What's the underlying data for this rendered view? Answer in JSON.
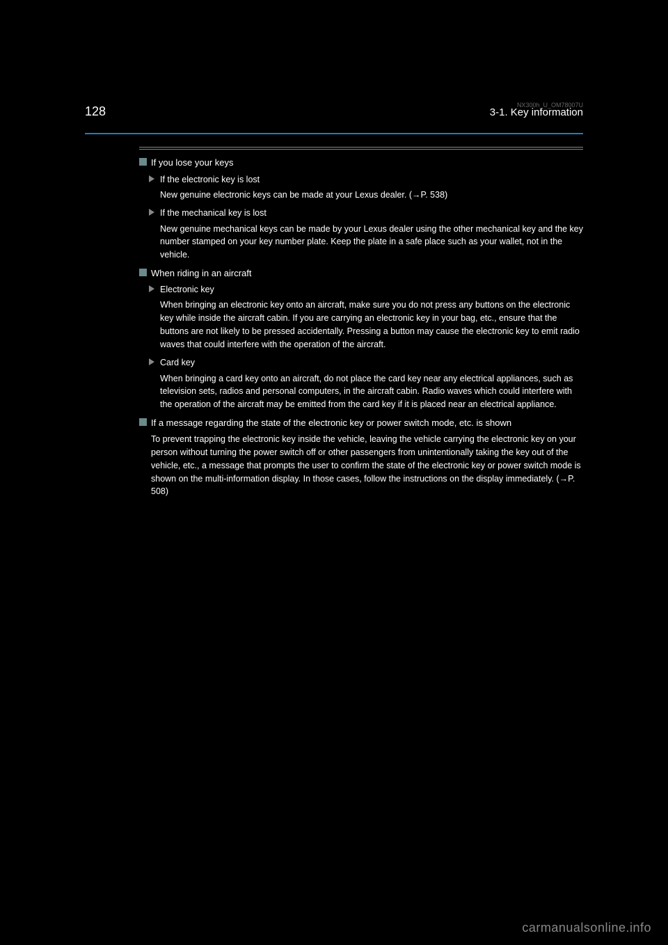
{
  "header": {
    "page_number": "128",
    "chapter": "3-1. Key information",
    "doc_code": "NX300h_U_OM78007U"
  },
  "sections": [
    {
      "type": "square",
      "heading": "If you lose your keys",
      "subitems": [
        {
          "type": "triangle",
          "text": "If the electronic key is lost",
          "body": "New genuine electronic keys can be made at your Lexus dealer. (→P. 538)"
        },
        {
          "type": "triangle",
          "text": "If the mechanical key is lost",
          "body": "New genuine mechanical keys can be made by your Lexus dealer using the other mechanical key and the key number stamped on your key number plate. Keep the plate in a safe place such as your wallet, not in the vehicle."
        }
      ]
    },
    {
      "type": "square",
      "heading": "When riding in an aircraft",
      "subitems": [
        {
          "type": "triangle",
          "text": "Electronic key",
          "body": "When bringing an electronic key onto an aircraft, make sure you do not press any buttons on the electronic key while inside the aircraft cabin. If you are carrying an electronic key in your bag, etc., ensure that the buttons are not likely to be pressed accidentally. Pressing a button may cause the electronic key to emit radio waves that could interfere with the operation of the aircraft."
        },
        {
          "type": "triangle",
          "text": "Card key",
          "body": "When bringing a card key onto an aircraft, do not place the card key near any electrical appliances, such as television sets, radios and personal computers, in the aircraft cabin. Radio waves which could interfere with the operation of the aircraft may be emitted from the card key if it is placed near an electrical appliance."
        }
      ]
    },
    {
      "type": "square",
      "heading": "If a message regarding the state of the electronic key or power switch mode, etc. is shown",
      "body": "To prevent trapping the electronic key inside the vehicle, leaving the vehicle carrying the electronic key on your person without turning the power switch off or other passengers from unintentionally taking the key out of the vehicle, etc., a message that prompts the user to confirm the state of the electronic key or power switch mode is shown on the multi-information display. In those cases, follow the instructions on the display immediately. (→P. 508)"
    }
  ],
  "watermark": "carmanualsonline.info",
  "colors": {
    "background": "#000000",
    "text": "#ffffff",
    "blue_rule": "#1a7fc4",
    "square_bullet": "#6a8a8c",
    "triangle_bullet": "#888888",
    "grey_rule": "#888888",
    "watermark_color": "#888888"
  }
}
